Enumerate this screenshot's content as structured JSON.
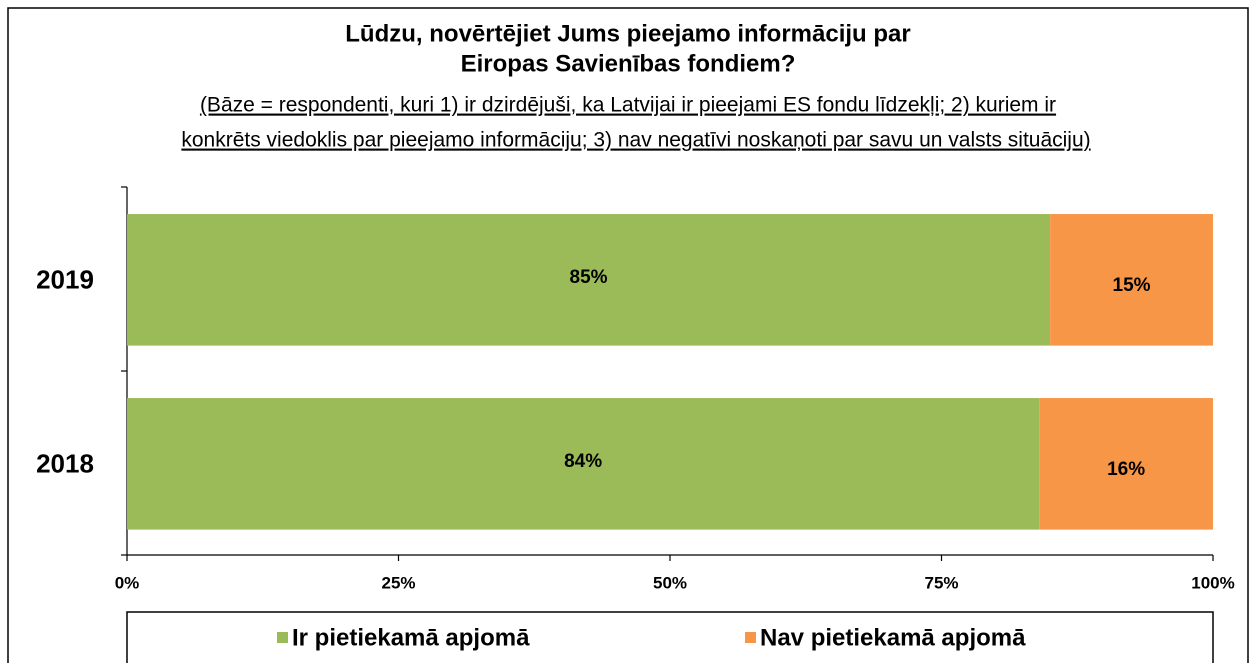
{
  "chart_data": {
    "type": "bar_stacked_horizontal",
    "title": [
      "Lūdzu, novērtējiet Jums pieejamo informāciju par",
      "Eiropas Savienības fondiem?"
    ],
    "subtitle": [
      "(Bāze = respondenti, kuri 1) ir dzirdējuši, ka Latvijai ir pieejami ES fondu līdzekļi; 2) kuriem ir",
      "konkrēts viedoklis par pieejamo informāciju; 3) nav negatīvi noskaņoti par savu un valsts situāciju)"
    ],
    "categories": [
      "2019",
      "2018"
    ],
    "series": [
      {
        "name": "Ir pietiekamā apjomā",
        "color": "#9bbb59",
        "values": [
          85,
          84
        ],
        "value_labels": [
          "85%",
          "84%"
        ]
      },
      {
        "name": "Nav pietiekamā apjomā",
        "color": "#f79646",
        "values": [
          15,
          16
        ],
        "value_labels": [
          "15%",
          "16%"
        ]
      }
    ],
    "xlim": [
      0,
      100
    ],
    "xticks": [
      {
        "value": 0,
        "label": "0%"
      },
      {
        "value": 25,
        "label": "25%"
      },
      {
        "value": 50,
        "label": "50%"
      },
      {
        "value": 75,
        "label": "75%"
      },
      {
        "value": 100,
        "label": "100%"
      }
    ],
    "legend": "bottom"
  }
}
